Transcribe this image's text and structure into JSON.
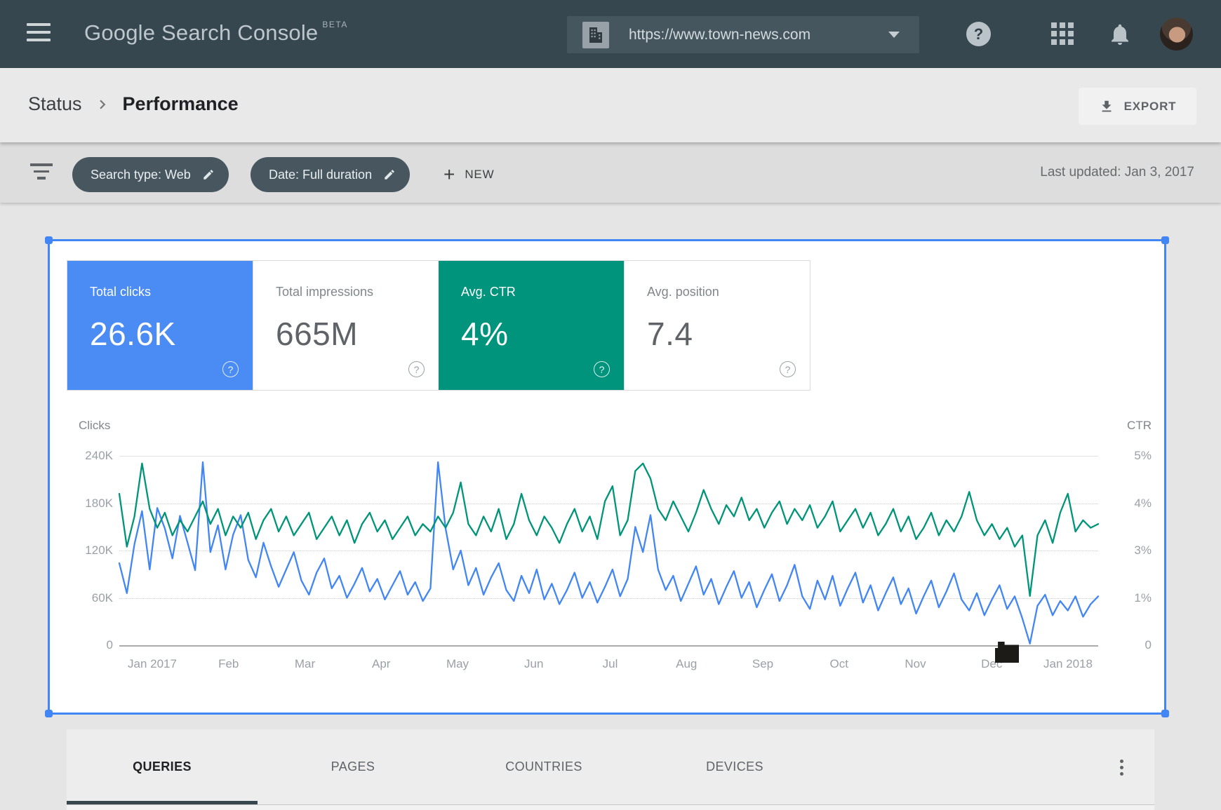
{
  "header": {
    "logo": {
      "brand": "Google",
      "product": "Search Console",
      "beta": "BETA"
    },
    "property": {
      "url": "https://www.town-news.com"
    },
    "help_glyph": "?"
  },
  "breadcrumb": {
    "items": [
      "Status",
      "Performance"
    ],
    "export_label": "EXPORT"
  },
  "filters": {
    "chips": [
      {
        "label": "Search type: Web"
      },
      {
        "label": "Date: Full duration"
      }
    ],
    "new_plus": "+",
    "new_label": "NEW",
    "last_updated": "Last updated: Jan 3, 2017"
  },
  "metrics": {
    "help_glyph": "?",
    "tiles": [
      {
        "label": "Total clicks",
        "value": "26.6K",
        "selected": true,
        "color": "#4A8BF4"
      },
      {
        "label": "Total impressions",
        "value": "665M",
        "selected": false,
        "color": "#FFFFFF"
      },
      {
        "label": "Avg. CTR",
        "value": "4%",
        "selected": true,
        "color": "#00947C"
      },
      {
        "label": "Avg. position",
        "value": "7.4",
        "selected": false,
        "color": "#FFFFFF"
      }
    ]
  },
  "chart_data": {
    "type": "line",
    "x_axis": {
      "labels": [
        "Jan 2017",
        "Feb",
        "Mar",
        "Apr",
        "May",
        "Jun",
        "Jul",
        "Aug",
        "Sep",
        "Oct",
        "Nov",
        "Dec",
        "Jan 2018"
      ]
    },
    "left_axis": {
      "title": "Clicks",
      "ticks": [
        "240K",
        "180K",
        "120K",
        "60K",
        "0"
      ],
      "min": 0,
      "max": 240000
    },
    "right_axis": {
      "title": "CTR",
      "ticks": [
        "5%",
        "4%",
        "3%",
        "1%",
        "0"
      ],
      "min": 0,
      "max": 5
    },
    "grid": true,
    "legend": "none",
    "series": [
      {
        "name": "Clicks",
        "axis": "left",
        "unit": "thousands",
        "color": "#4285F4",
        "values": [
          104,
          66,
          128,
          170,
          96,
          174,
          148,
          110,
          164,
          130,
          95,
          232,
          118,
          152,
          96,
          140,
          165,
          108,
          86,
          130,
          100,
          74,
          96,
          118,
          82,
          64,
          92,
          110,
          72,
          88,
          60,
          78,
          98,
          68,
          84,
          58,
          76,
          94,
          64,
          80,
          56,
          72,
          232,
          148,
          96,
          120,
          76,
          98,
          64,
          86,
          104,
          70,
          56,
          88,
          66,
          96,
          58,
          78,
          52,
          70,
          92,
          60,
          80,
          54,
          74,
          96,
          62,
          84,
          150,
          118,
          165,
          96,
          70,
          88,
          56,
          78,
          100,
          64,
          84,
          52,
          74,
          94,
          60,
          80,
          48,
          70,
          90,
          56,
          76,
          102,
          62,
          46,
          82,
          58,
          88,
          50,
          72,
          92,
          54,
          76,
          44,
          66,
          86,
          52,
          72,
          40,
          62,
          82,
          48,
          68,
          91,
          58,
          44,
          66,
          38,
          58,
          76,
          46,
          62,
          34,
          2,
          50,
          64,
          38,
          56,
          44,
          62,
          36,
          52,
          62
        ]
      },
      {
        "name": "CTR",
        "axis": "right",
        "unit": "percent",
        "color": "#009478",
        "values": [
          4.0,
          2.6,
          3.4,
          4.8,
          3.6,
          3.1,
          3.5,
          2.9,
          3.3,
          3.0,
          3.4,
          3.8,
          3.2,
          3.6,
          2.9,
          3.4,
          3.1,
          3.5,
          2.8,
          3.3,
          3.6,
          3.0,
          3.4,
          2.9,
          3.2,
          3.5,
          2.8,
          3.1,
          3.4,
          2.9,
          3.3,
          2.7,
          3.2,
          3.5,
          3.0,
          3.3,
          2.8,
          3.1,
          3.4,
          2.9,
          3.2,
          3.0,
          3.4,
          3.1,
          3.5,
          4.3,
          3.2,
          2.9,
          3.4,
          3.0,
          3.6,
          2.8,
          3.2,
          4.0,
          3.3,
          2.9,
          3.4,
          3.1,
          2.7,
          3.2,
          3.6,
          3.0,
          3.4,
          2.8,
          3.8,
          4.2,
          2.9,
          3.3,
          4.6,
          4.8,
          4.4,
          3.6,
          3.3,
          3.8,
          3.4,
          3.0,
          3.5,
          4.1,
          3.6,
          3.2,
          3.7,
          3.4,
          3.9,
          3.3,
          3.6,
          3.1,
          3.5,
          3.8,
          3.2,
          3.6,
          3.3,
          3.7,
          3.1,
          3.4,
          3.8,
          3.0,
          3.3,
          3.6,
          3.1,
          3.5,
          2.9,
          3.2,
          3.6,
          3.0,
          3.4,
          2.8,
          3.1,
          3.5,
          2.9,
          3.3,
          3.0,
          3.4,
          4.05,
          3.3,
          2.9,
          3.2,
          2.8,
          3.1,
          2.6,
          2.9,
          1.3,
          2.9,
          3.3,
          2.7,
          3.5,
          4.0,
          3.0,
          3.3,
          3.1,
          3.2
        ]
      }
    ]
  },
  "tabs": {
    "items": [
      "QUERIES",
      "PAGES",
      "COUNTRIES",
      "DEVICES"
    ],
    "active": "QUERIES"
  },
  "colors": {
    "appbar": "#37474F",
    "accent_blue": "#4285F4",
    "accent_teal": "#00947C"
  }
}
